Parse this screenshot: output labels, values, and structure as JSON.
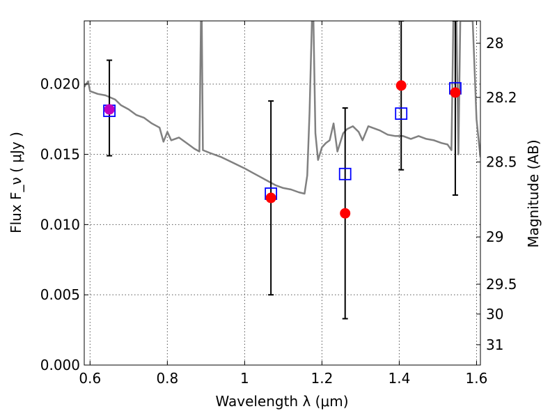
{
  "chart_data": {
    "type": "scatter",
    "xlabel": "Wavelength λ (μm)",
    "ylabel_left": "Flux F_ν ( μJy )",
    "ylabel_right": "Magnitude (AB)",
    "xlim": [
      0.585,
      1.61
    ],
    "ylim": [
      0.0,
      0.0245
    ],
    "grid": true,
    "x_ticks": [
      {
        "v": 0.6,
        "label": "0.6"
      },
      {
        "v": 0.8,
        "label": "0.8"
      },
      {
        "v": 1.0,
        "label": "1"
      },
      {
        "v": 1.2,
        "label": "1.2"
      },
      {
        "v": 1.4,
        "label": "1.4"
      },
      {
        "v": 1.6,
        "label": "1.6"
      }
    ],
    "y_ticks": [
      {
        "v": 0.0,
        "label": "0.000"
      },
      {
        "v": 0.005,
        "label": "0.005"
      },
      {
        "v": 0.01,
        "label": "0.010"
      },
      {
        "v": 0.015,
        "label": "0.015"
      },
      {
        "v": 0.02,
        "label": "0.020"
      }
    ],
    "mag_ticks": [
      {
        "v": 28,
        "label": "28"
      },
      {
        "v": 28.2,
        "label": "28.2"
      },
      {
        "v": 28.5,
        "label": "28.5"
      },
      {
        "v": 29,
        "label": "29"
      },
      {
        "v": 29.5,
        "label": "29.5"
      },
      {
        "v": 30,
        "label": "30"
      },
      {
        "v": 31,
        "label": "31"
      }
    ],
    "series": [
      {
        "kind": "observed",
        "marker": "circle",
        "color": "#ff0000",
        "points": [
          {
            "x": 0.65,
            "y": 0.0182,
            "err_low": 0.0149,
            "err_high": 0.0217
          },
          {
            "x": 1.068,
            "y": 0.0119,
            "err_low": 0.005,
            "err_high": 0.0188
          },
          {
            "x": 1.26,
            "y": 0.0108,
            "err_low": 0.0033,
            "err_high": 0.0183
          },
          {
            "x": 1.405,
            "y": 0.0199,
            "err_low": 0.0139,
            "err_high": 0.0245
          },
          {
            "x": 1.545,
            "y": 0.0194,
            "err_low": 0.0121,
            "err_high": 0.0245
          }
        ]
      },
      {
        "kind": "model",
        "marker": "open-square",
        "color": "#0000ff",
        "points": [
          {
            "x": 0.65,
            "y": 0.0181
          },
          {
            "x": 1.068,
            "y": 0.0122
          },
          {
            "x": 1.26,
            "y": 0.0136
          },
          {
            "x": 1.405,
            "y": 0.0179
          },
          {
            "x": 1.545,
            "y": 0.0197
          }
        ]
      },
      {
        "kind": "spectrum",
        "color": "#808080",
        "points": [
          [
            0.585,
            0.0198
          ],
          [
            0.595,
            0.0202
          ],
          [
            0.6,
            0.0195
          ],
          [
            0.62,
            0.0193
          ],
          [
            0.64,
            0.0192
          ],
          [
            0.665,
            0.0189
          ],
          [
            0.68,
            0.0185
          ],
          [
            0.7,
            0.0182
          ],
          [
            0.72,
            0.0178
          ],
          [
            0.74,
            0.0176
          ],
          [
            0.76,
            0.0172
          ],
          [
            0.78,
            0.0169
          ],
          [
            0.79,
            0.0159
          ],
          [
            0.8,
            0.0166
          ],
          [
            0.81,
            0.016
          ],
          [
            0.83,
            0.0162
          ],
          [
            0.85,
            0.0158
          ],
          [
            0.87,
            0.0154
          ],
          [
            0.883,
            0.0152
          ],
          [
            0.887,
            0.0245
          ],
          [
            0.889,
            0.0245
          ],
          [
            0.892,
            0.0153
          ],
          [
            0.91,
            0.0151
          ],
          [
            0.94,
            0.0148
          ],
          [
            0.97,
            0.0144
          ],
          [
            1.0,
            0.014
          ],
          [
            1.02,
            0.0137
          ],
          [
            1.04,
            0.0134
          ],
          [
            1.06,
            0.0131
          ],
          [
            1.08,
            0.0128
          ],
          [
            1.1,
            0.0126
          ],
          [
            1.12,
            0.0125
          ],
          [
            1.14,
            0.0123
          ],
          [
            1.155,
            0.0122
          ],
          [
            1.162,
            0.0135
          ],
          [
            1.168,
            0.018
          ],
          [
            1.174,
            0.0245
          ],
          [
            1.178,
            0.0245
          ],
          [
            1.183,
            0.0165
          ],
          [
            1.19,
            0.0146
          ],
          [
            1.2,
            0.0155
          ],
          [
            1.21,
            0.0158
          ],
          [
            1.22,
            0.016
          ],
          [
            1.23,
            0.0172
          ],
          [
            1.24,
            0.0152
          ],
          [
            1.255,
            0.0165
          ],
          [
            1.265,
            0.0168
          ],
          [
            1.28,
            0.017
          ],
          [
            1.295,
            0.0166
          ],
          [
            1.305,
            0.016
          ],
          [
            1.32,
            0.017
          ],
          [
            1.35,
            0.0167
          ],
          [
            1.37,
            0.0164
          ],
          [
            1.39,
            0.0163
          ],
          [
            1.41,
            0.0163
          ],
          [
            1.43,
            0.0161
          ],
          [
            1.45,
            0.0163
          ],
          [
            1.47,
            0.0161
          ],
          [
            1.49,
            0.016
          ],
          [
            1.51,
            0.0158
          ],
          [
            1.525,
            0.0157
          ],
          [
            1.535,
            0.0153
          ],
          [
            1.54,
            0.0245
          ],
          [
            1.548,
            0.0245
          ],
          [
            1.553,
            0.015
          ],
          [
            1.558,
            0.0245
          ],
          [
            1.59,
            0.0245
          ],
          [
            1.6,
            0.0175
          ],
          [
            1.61,
            0.0148
          ]
        ]
      }
    ]
  }
}
